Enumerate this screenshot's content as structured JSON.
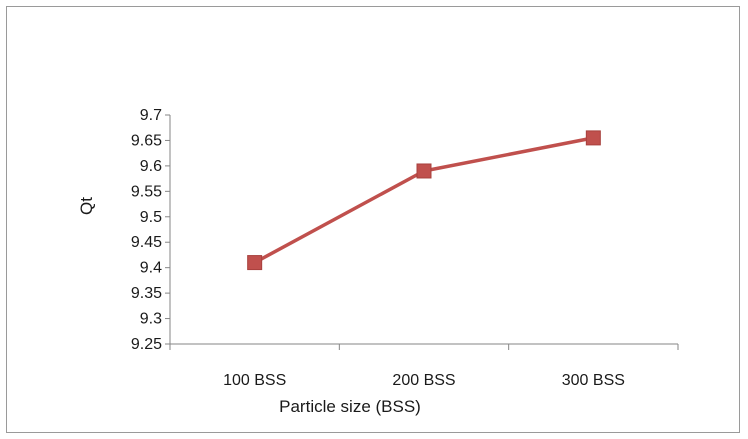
{
  "chart_data": {
    "type": "line",
    "title": "",
    "xlabel": "Particle size (BSS)",
    "ylabel": "Qt",
    "categories": [
      "100 BSS",
      "200 BSS",
      "300 BSS"
    ],
    "series": [
      {
        "values": [
          9.41,
          9.59,
          9.655
        ],
        "color": "#c0504d",
        "marker": "square"
      }
    ],
    "ylim": [
      9.25,
      9.7
    ],
    "yticks": [
      "9.25",
      "9.3",
      "9.35",
      "9.4",
      "9.45",
      "9.5",
      "9.55",
      "9.6",
      "9.65",
      "9.7"
    ],
    "ytick_values": [
      9.25,
      9.3,
      9.35,
      9.4,
      9.45,
      9.5,
      9.55,
      9.6,
      9.65,
      9.7
    ],
    "grid": false,
    "legend": "none",
    "axis_color": "#868686"
  }
}
